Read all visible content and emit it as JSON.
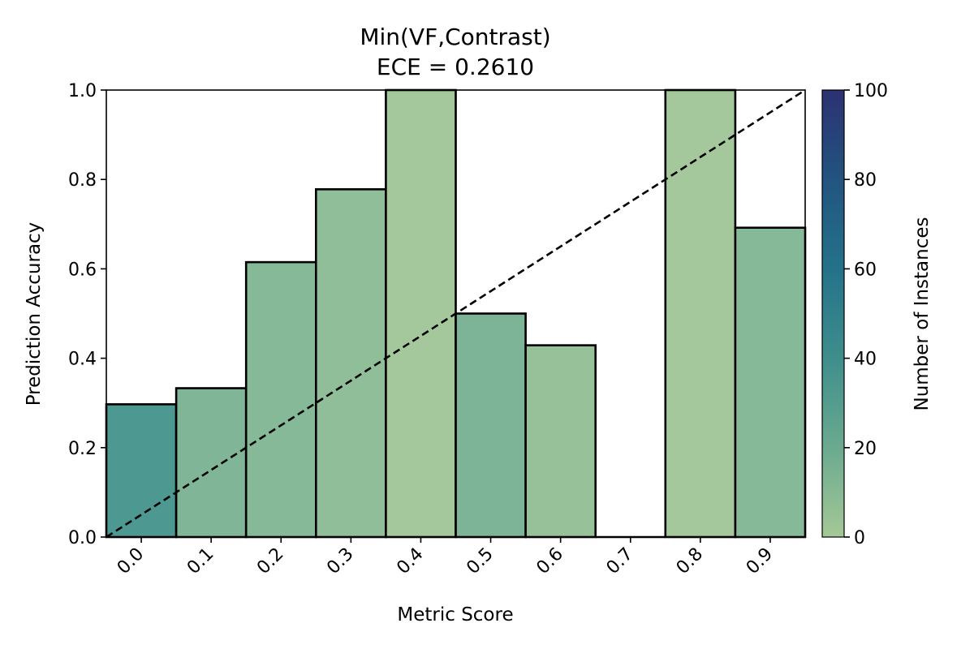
{
  "chart_data": {
    "type": "bar",
    "title": "Min(VF,Contrast)",
    "subtitle": "ECE = 0.2610",
    "xlabel": "Metric Score",
    "ylabel": "Prediction Accuracy",
    "categories": [
      "0.0",
      "0.1",
      "0.2",
      "0.3",
      "0.4",
      "0.5",
      "0.6",
      "0.7",
      "0.8",
      "0.9"
    ],
    "bin_centers": [
      0.0,
      0.1,
      0.2,
      0.3,
      0.4,
      0.5,
      0.6,
      0.7,
      0.8,
      0.9
    ],
    "bin_width": 0.1,
    "values": [
      0.297,
      0.333,
      0.615,
      0.778,
      1.0,
      0.5,
      0.429,
      0.0,
      1.0,
      0.692
    ],
    "counts": [
      37,
      15,
      13,
      9,
      2,
      16,
      7,
      0,
      2,
      13
    ],
    "xlim": [
      -0.05,
      0.95
    ],
    "ylim": [
      0,
      1.0
    ],
    "yticks": [
      "0.0",
      "0.2",
      "0.4",
      "0.6",
      "0.8",
      "1.0"
    ],
    "ytick_values": [
      0.0,
      0.2,
      0.4,
      0.6,
      0.8,
      1.0
    ],
    "diagonal": {
      "style": "dashed",
      "color": "#000000",
      "from": [
        -0.05,
        0.0
      ],
      "to": [
        0.95,
        1.0
      ]
    },
    "colorbar": {
      "label": "Number of Instances",
      "range": [
        0,
        100
      ],
      "ticks": [
        "0",
        "20",
        "40",
        "60",
        "80",
        "100"
      ],
      "tick_values": [
        0,
        20,
        40,
        60,
        80,
        100
      ],
      "colormap": "crest",
      "colors": [
        "#a5c897",
        "#6aaa8f",
        "#3f8e8c",
        "#24728a",
        "#22547f",
        "#2c3172"
      ]
    },
    "bar_edge_color": "#000000",
    "grid": false
  }
}
